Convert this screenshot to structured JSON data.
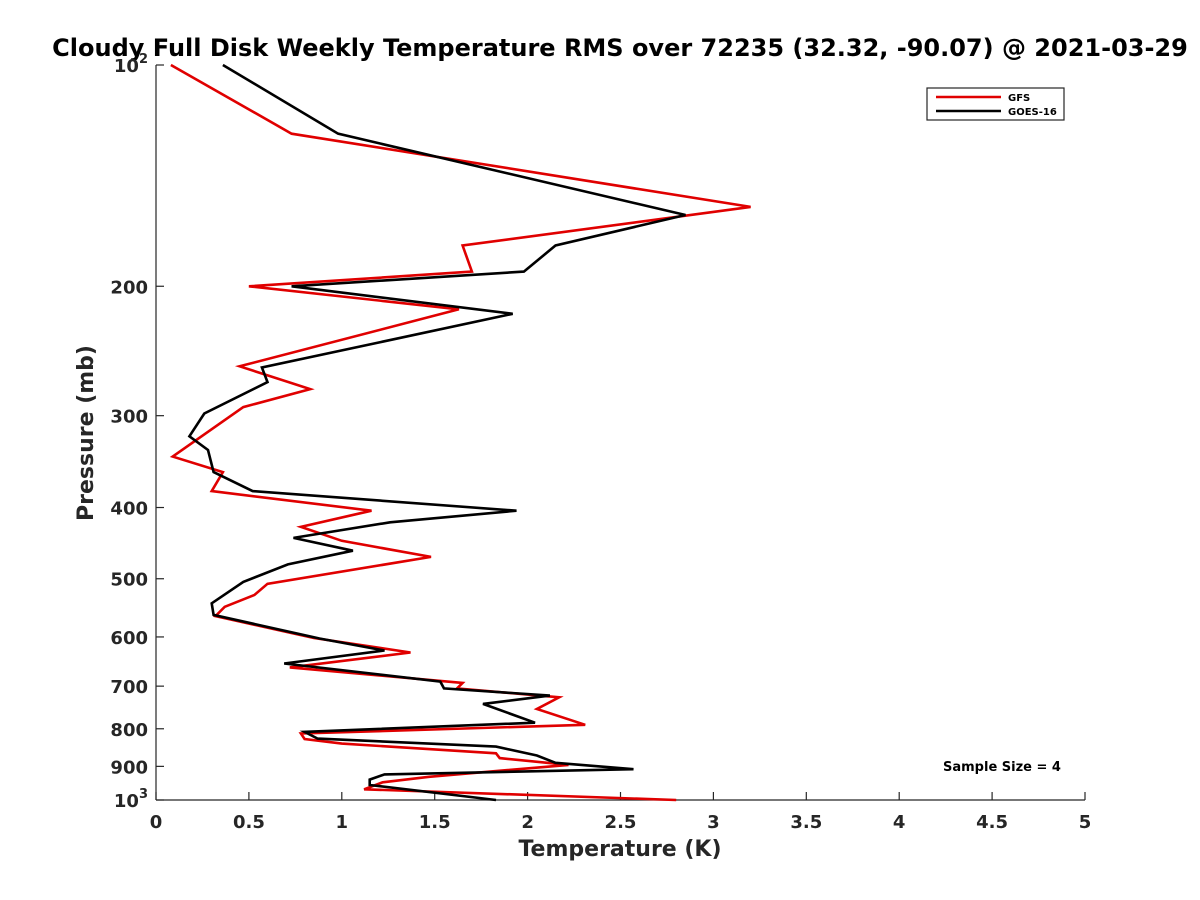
{
  "chart_data": {
    "type": "line",
    "title": "Cloudy Full Disk Weekly Temperature RMS over 72235 (32.32, -90.07) @ 2021-03-29",
    "xlabel": "Temperature (K)",
    "ylabel": "Pressure (mb)",
    "xlim": [
      0,
      5
    ],
    "ylim": [
      1000,
      100
    ],
    "y_scale": "log",
    "y_reversed": true,
    "grid": false,
    "legend_position": "top-right",
    "x_ticks": [
      "0",
      "0.5",
      "1",
      "1.5",
      "2",
      "2.5",
      "3",
      "3.5",
      "4",
      "4.5",
      "5"
    ],
    "x_tick_values": [
      0,
      0.5,
      1,
      1.5,
      2,
      2.5,
      3,
      3.5,
      4,
      4.5,
      5
    ],
    "y_ticks": [
      {
        "value": 100,
        "base": "10",
        "exp": "2"
      },
      {
        "value": 200,
        "label": "200"
      },
      {
        "value": 300,
        "label": "300"
      },
      {
        "value": 400,
        "label": "400"
      },
      {
        "value": 500,
        "label": "500"
      },
      {
        "value": 600,
        "label": "600"
      },
      {
        "value": 700,
        "label": "700"
      },
      {
        "value": 800,
        "label": "800"
      },
      {
        "value": 900,
        "label": "900"
      },
      {
        "value": 1000,
        "base": "10",
        "exp": "3"
      }
    ],
    "annotation": "Sample Size = 4",
    "series": [
      {
        "name": "GFS",
        "color": "#e00000",
        "points": [
          [
            0.08,
            100
          ],
          [
            0.73,
            124
          ],
          [
            3.2,
            156
          ],
          [
            1.65,
            176
          ],
          [
            1.7,
            191
          ],
          [
            0.5,
            200
          ],
          [
            1.63,
            215
          ],
          [
            0.45,
            257
          ],
          [
            0.83,
            276
          ],
          [
            0.47,
            292
          ],
          [
            0.09,
            341
          ],
          [
            0.36,
            358
          ],
          [
            0.3,
            380
          ],
          [
            1.16,
            404
          ],
          [
            0.78,
            425
          ],
          [
            1.0,
            444
          ],
          [
            1.48,
            467
          ],
          [
            0.6,
            508
          ],
          [
            0.53,
            526
          ],
          [
            0.37,
            546
          ],
          [
            0.32,
            562
          ],
          [
            0.85,
            602
          ],
          [
            1.37,
            630
          ],
          [
            0.72,
            660
          ],
          [
            1.65,
            693
          ],
          [
            1.62,
            705
          ],
          [
            2.17,
            725
          ],
          [
            2.05,
            752
          ],
          [
            2.31,
            790
          ],
          [
            0.78,
            812
          ],
          [
            0.8,
            826
          ],
          [
            1.0,
            838
          ],
          [
            1.83,
            864
          ],
          [
            1.85,
            877
          ],
          [
            2.22,
            896
          ],
          [
            1.47,
            930
          ],
          [
            1.22,
            946
          ],
          [
            1.12,
            967
          ],
          [
            2.8,
            1000
          ]
        ]
      },
      {
        "name": "GOES-16",
        "color": "#000000",
        "points": [
          [
            0.36,
            100
          ],
          [
            0.98,
            124
          ],
          [
            2.85,
            160
          ],
          [
            2.15,
            176
          ],
          [
            1.98,
            191
          ],
          [
            0.73,
            200
          ],
          [
            1.92,
            218
          ],
          [
            0.57,
            258
          ],
          [
            0.6,
            270
          ],
          [
            0.26,
            298
          ],
          [
            0.18,
            320
          ],
          [
            0.28,
            334
          ],
          [
            0.31,
            358
          ],
          [
            0.52,
            380
          ],
          [
            1.94,
            404
          ],
          [
            1.26,
            419
          ],
          [
            0.74,
            440
          ],
          [
            1.06,
            458
          ],
          [
            0.71,
            478
          ],
          [
            0.47,
            505
          ],
          [
            0.3,
            540
          ],
          [
            0.31,
            560
          ],
          [
            0.88,
            603
          ],
          [
            1.23,
            626
          ],
          [
            0.69,
            652
          ],
          [
            1.53,
            690
          ],
          [
            1.55,
            705
          ],
          [
            2.12,
            721
          ],
          [
            1.76,
            740
          ],
          [
            2.04,
            785
          ],
          [
            0.8,
            808
          ],
          [
            0.87,
            825
          ],
          [
            1.83,
            846
          ],
          [
            2.05,
            870
          ],
          [
            2.15,
            890
          ],
          [
            2.57,
            908
          ],
          [
            1.23,
            923
          ],
          [
            1.15,
            938
          ],
          [
            1.15,
            954
          ],
          [
            1.83,
            1000
          ]
        ]
      }
    ]
  }
}
